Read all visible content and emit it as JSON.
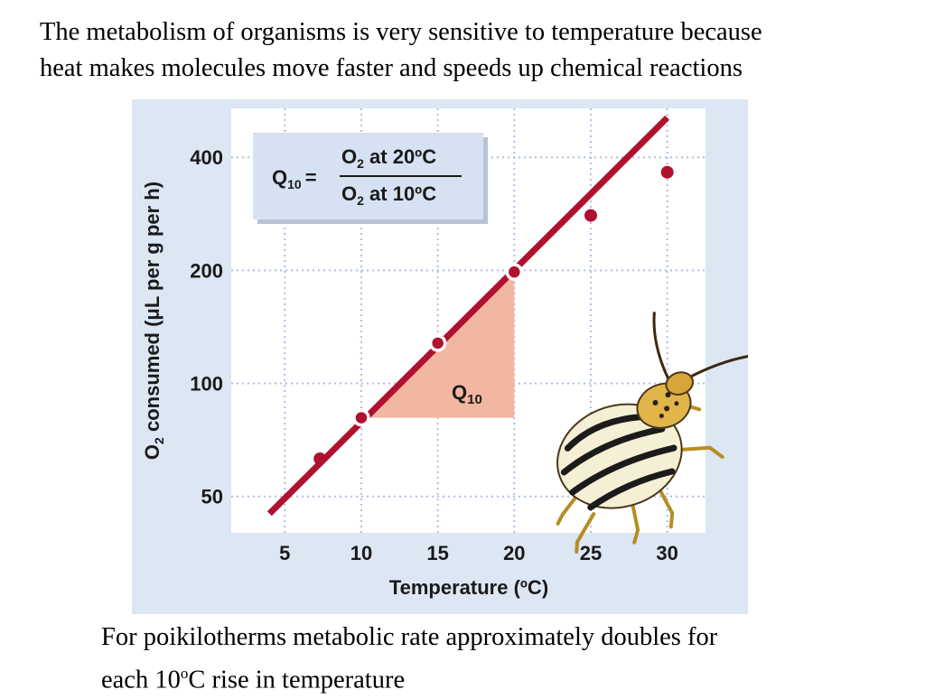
{
  "slide": {
    "heading_line1": "The metabolism of organisms is very sensitive to temperature because",
    "heading_line2": "heat makes molecules move faster and speeds up chemical reactions",
    "caption_line1": "For poikilotherms metabolic rate approximately doubles for",
    "caption_prefix": "each 10",
    "caption_sup": "o",
    "caption_suffix": "C rise in temperature"
  },
  "formula": {
    "lhs_main": "Q",
    "lhs_sub": "10",
    "equals": "=",
    "num_prefix": "O",
    "num_sub": "2",
    "num_suffix": " at 20ºC",
    "den_prefix": "O",
    "den_sub": "2",
    "den_suffix": " at 10ºC"
  },
  "triangle_label": {
    "main": "Q",
    "sub": "10"
  },
  "axis_label_x": "Temperature (ºC)",
  "axis_label_y": {
    "prefix": "O",
    "sub": "2",
    "suffix": " consumed (μL per g per h)"
  },
  "colors": {
    "panel": "#dde6f3",
    "plot_bg": "#ffffff",
    "grid": "#aebfe0",
    "line": "#b0112f",
    "point": "#b0112f",
    "triangle": "#f2b7a0",
    "formula_box": "#d6e1f1"
  },
  "icons": {
    "beetle": "colorado-potato-beetle-illustration"
  },
  "chart_data": {
    "type": "scatter",
    "x_scale": "linear",
    "y_scale": "log",
    "x_ticks": [
      5,
      10,
      15,
      20,
      25,
      30
    ],
    "x_tick_labels": [
      "5",
      "10",
      "15",
      "20",
      "25",
      "30"
    ],
    "y_ticks": [
      50,
      100,
      200,
      400
    ],
    "y_tick_labels": [
      "50",
      "100",
      "200",
      "400"
    ],
    "xlim": [
      1.5,
      32.5
    ],
    "ylim": [
      40,
      540
    ],
    "grid": true,
    "points": [
      {
        "x": 7.3,
        "y": 63,
        "hollow_ring": false
      },
      {
        "x": 10,
        "y": 81,
        "hollow_ring": true
      },
      {
        "x": 15,
        "y": 128,
        "hollow_ring": true
      },
      {
        "x": 20,
        "y": 198,
        "hollow_ring": true
      },
      {
        "x": 25,
        "y": 280,
        "hollow_ring": false
      },
      {
        "x": 30,
        "y": 365,
        "hollow_ring": false
      }
    ],
    "trend_line": {
      "x1": 4,
      "y1": 45,
      "x2": 30,
      "y2": 510
    },
    "q10_triangle": {
      "x1": 10,
      "x2": 20,
      "y1": 81,
      "y2": 198
    }
  }
}
